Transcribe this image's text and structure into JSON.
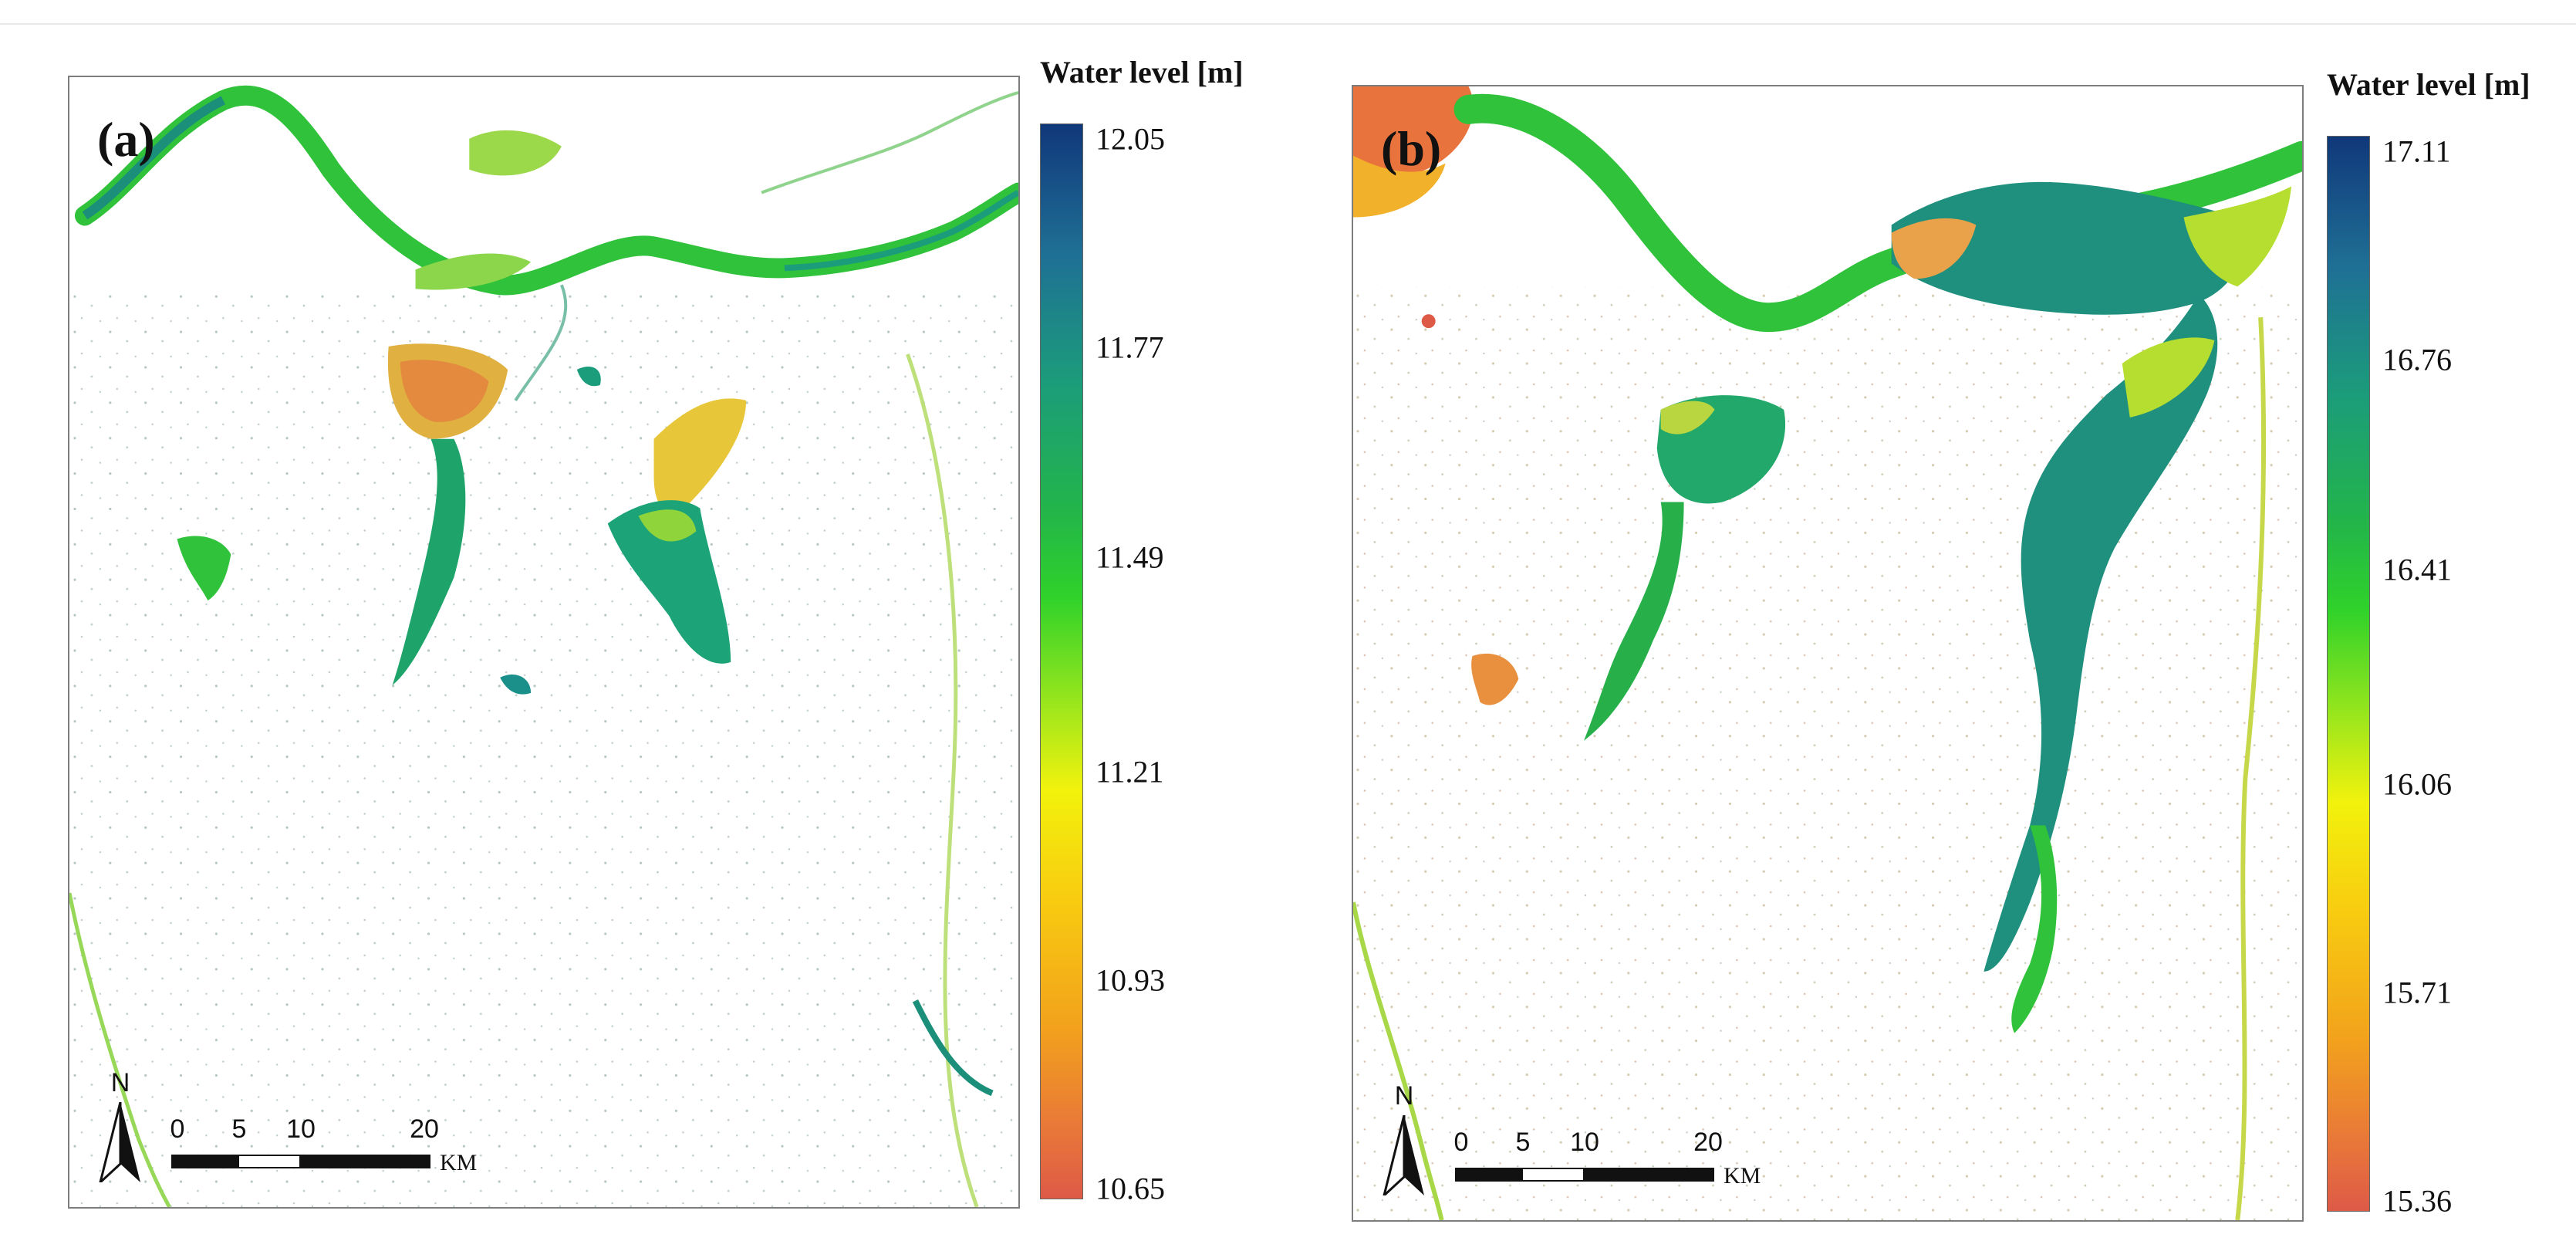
{
  "panels": [
    {
      "label": "(a)",
      "legend": {
        "title": "Water level [m]",
        "ticks": [
          "12.05",
          "11.77",
          "11.49",
          "11.21",
          "10.93",
          "10.65"
        ],
        "colors": [
          "#10387a",
          "#1b9c7a",
          "#2fd22a",
          "#f2f20c",
          "#f2a21c",
          "#dd5a47"
        ]
      },
      "north_label": "N",
      "scale": {
        "ticks": [
          "0",
          "5",
          "10",
          "20"
        ],
        "unit": "KM"
      }
    },
    {
      "label": "(b)",
      "legend": {
        "title": "Water level [m]",
        "ticks": [
          "17.11",
          "16.76",
          "16.41",
          "16.06",
          "15.71",
          "15.36"
        ],
        "colors": [
          "#10387a",
          "#1b9c7a",
          "#2fd22a",
          "#f2f20c",
          "#f2a21c",
          "#dd5a47"
        ]
      },
      "north_label": "N",
      "scale": {
        "ticks": [
          "0",
          "5",
          "10",
          "20"
        ],
        "unit": "KM"
      }
    }
  ]
}
